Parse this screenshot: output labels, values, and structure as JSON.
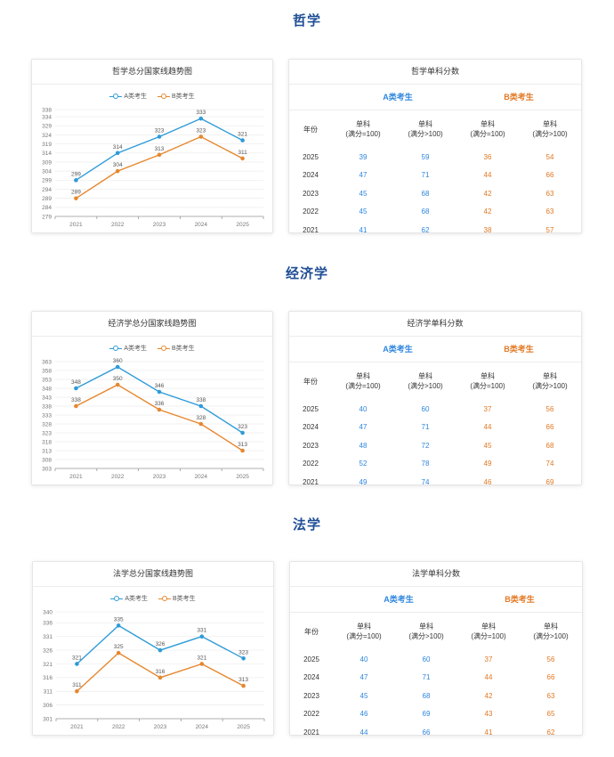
{
  "colors": {
    "a": "#2e9bd8",
    "b": "#e6872e",
    "title": "#1f4e96"
  },
  "legend": {
    "a": "A类考生",
    "b": "B类考生"
  },
  "sections": [
    {
      "title": "哲学",
      "chart_title": "哲学总分国家线趋势图",
      "table_title": "哲学单科分数",
      "years": [
        "2021",
        "2022",
        "2023",
        "2024",
        "2025"
      ],
      "yticks": [
        279,
        284,
        289,
        294,
        299,
        304,
        309,
        314,
        319,
        324,
        329,
        334,
        338
      ],
      "a_values": [
        299,
        314,
        323,
        333,
        321
      ],
      "b_values": [
        289,
        304,
        313,
        323,
        311
      ],
      "table": {
        "group_a": "A类考生",
        "group_b": "B类考生",
        "col_year": "年份",
        "cols": [
          "单科\n(满分=100)",
          "单科\n(满分>100)",
          "单科\n(满分=100)",
          "单科\n(满分>100)"
        ],
        "rows": [
          [
            "2025",
            "39",
            "59",
            "36",
            "54"
          ],
          [
            "2024",
            "47",
            "71",
            "44",
            "66"
          ],
          [
            "2023",
            "45",
            "68",
            "42",
            "63"
          ],
          [
            "2022",
            "45",
            "68",
            "42",
            "63"
          ],
          [
            "2021",
            "41",
            "62",
            "38",
            "57"
          ]
        ]
      }
    },
    {
      "title": "经济学",
      "chart_title": "经济学总分国家线趋势图",
      "table_title": "经济学单科分数",
      "years": [
        "2021",
        "2022",
        "2023",
        "2024",
        "2025"
      ],
      "yticks": [
        303,
        308,
        313,
        318,
        323,
        328,
        333,
        338,
        343,
        348,
        353,
        358,
        363
      ],
      "a_values": [
        348,
        360,
        346,
        338,
        323
      ],
      "b_values": [
        338,
        350,
        336,
        328,
        313
      ],
      "table": {
        "group_a": "A类考生",
        "group_b": "B类考生",
        "col_year": "年份",
        "cols": [
          "单科\n(满分=100)",
          "单科\n(满分>100)",
          "单科\n(满分=100)",
          "单科\n(满分>100)"
        ],
        "rows": [
          [
            "2025",
            "40",
            "60",
            "37",
            "56"
          ],
          [
            "2024",
            "47",
            "71",
            "44",
            "66"
          ],
          [
            "2023",
            "48",
            "72",
            "45",
            "68"
          ],
          [
            "2022",
            "52",
            "78",
            "49",
            "74"
          ],
          [
            "2021",
            "49",
            "74",
            "46",
            "69"
          ]
        ]
      }
    },
    {
      "title": "法学",
      "chart_title": "法学总分国家线趋势图",
      "table_title": "法学单科分数",
      "years": [
        "2021",
        "2022",
        "2023",
        "2024",
        "2025"
      ],
      "yticks": [
        301,
        306,
        311,
        316,
        321,
        326,
        331,
        336,
        340
      ],
      "a_values": [
        321,
        335,
        326,
        331,
        323
      ],
      "b_values": [
        311,
        325,
        316,
        321,
        313
      ],
      "table": {
        "group_a": "A类考生",
        "group_b": "B类考生",
        "col_year": "年份",
        "cols": [
          "单科\n(满分=100)",
          "单科\n(满分>100)",
          "单科\n(满分=100)",
          "单科\n(满分>100)"
        ],
        "rows": [
          [
            "2025",
            "40",
            "60",
            "37",
            "56"
          ],
          [
            "2024",
            "47",
            "71",
            "44",
            "66"
          ],
          [
            "2023",
            "45",
            "68",
            "42",
            "63"
          ],
          [
            "2022",
            "46",
            "69",
            "43",
            "65"
          ],
          [
            "2021",
            "44",
            "66",
            "41",
            "62"
          ]
        ]
      }
    }
  ],
  "chart_data": [
    {
      "type": "line",
      "title": "哲学总分国家线趋势图",
      "categories": [
        "2021",
        "2022",
        "2023",
        "2024",
        "2025"
      ],
      "series": [
        {
          "name": "A类考生",
          "values": [
            299,
            314,
            323,
            333,
            321
          ]
        },
        {
          "name": "B类考生",
          "values": [
            289,
            304,
            313,
            323,
            311
          ]
        }
      ],
      "ylim": [
        279,
        338
      ],
      "legend": "top-center",
      "grid": true
    },
    {
      "type": "line",
      "title": "经济学总分国家线趋势图",
      "categories": [
        "2021",
        "2022",
        "2023",
        "2024",
        "2025"
      ],
      "series": [
        {
          "name": "A类考生",
          "values": [
            348,
            360,
            346,
            338,
            323
          ]
        },
        {
          "name": "B类考生",
          "values": [
            338,
            350,
            336,
            328,
            313
          ]
        }
      ],
      "ylim": [
        303,
        363
      ],
      "legend": "top-center",
      "grid": true
    },
    {
      "type": "line",
      "title": "法学总分国家线趋势图",
      "categories": [
        "2021",
        "2022",
        "2023",
        "2024",
        "2025"
      ],
      "series": [
        {
          "name": "A类考生",
          "values": [
            321,
            335,
            326,
            331,
            323
          ]
        },
        {
          "name": "B类考生",
          "values": [
            311,
            325,
            316,
            321,
            313
          ]
        }
      ],
      "ylim": [
        301,
        340
      ],
      "legend": "top-center",
      "grid": true
    }
  ]
}
